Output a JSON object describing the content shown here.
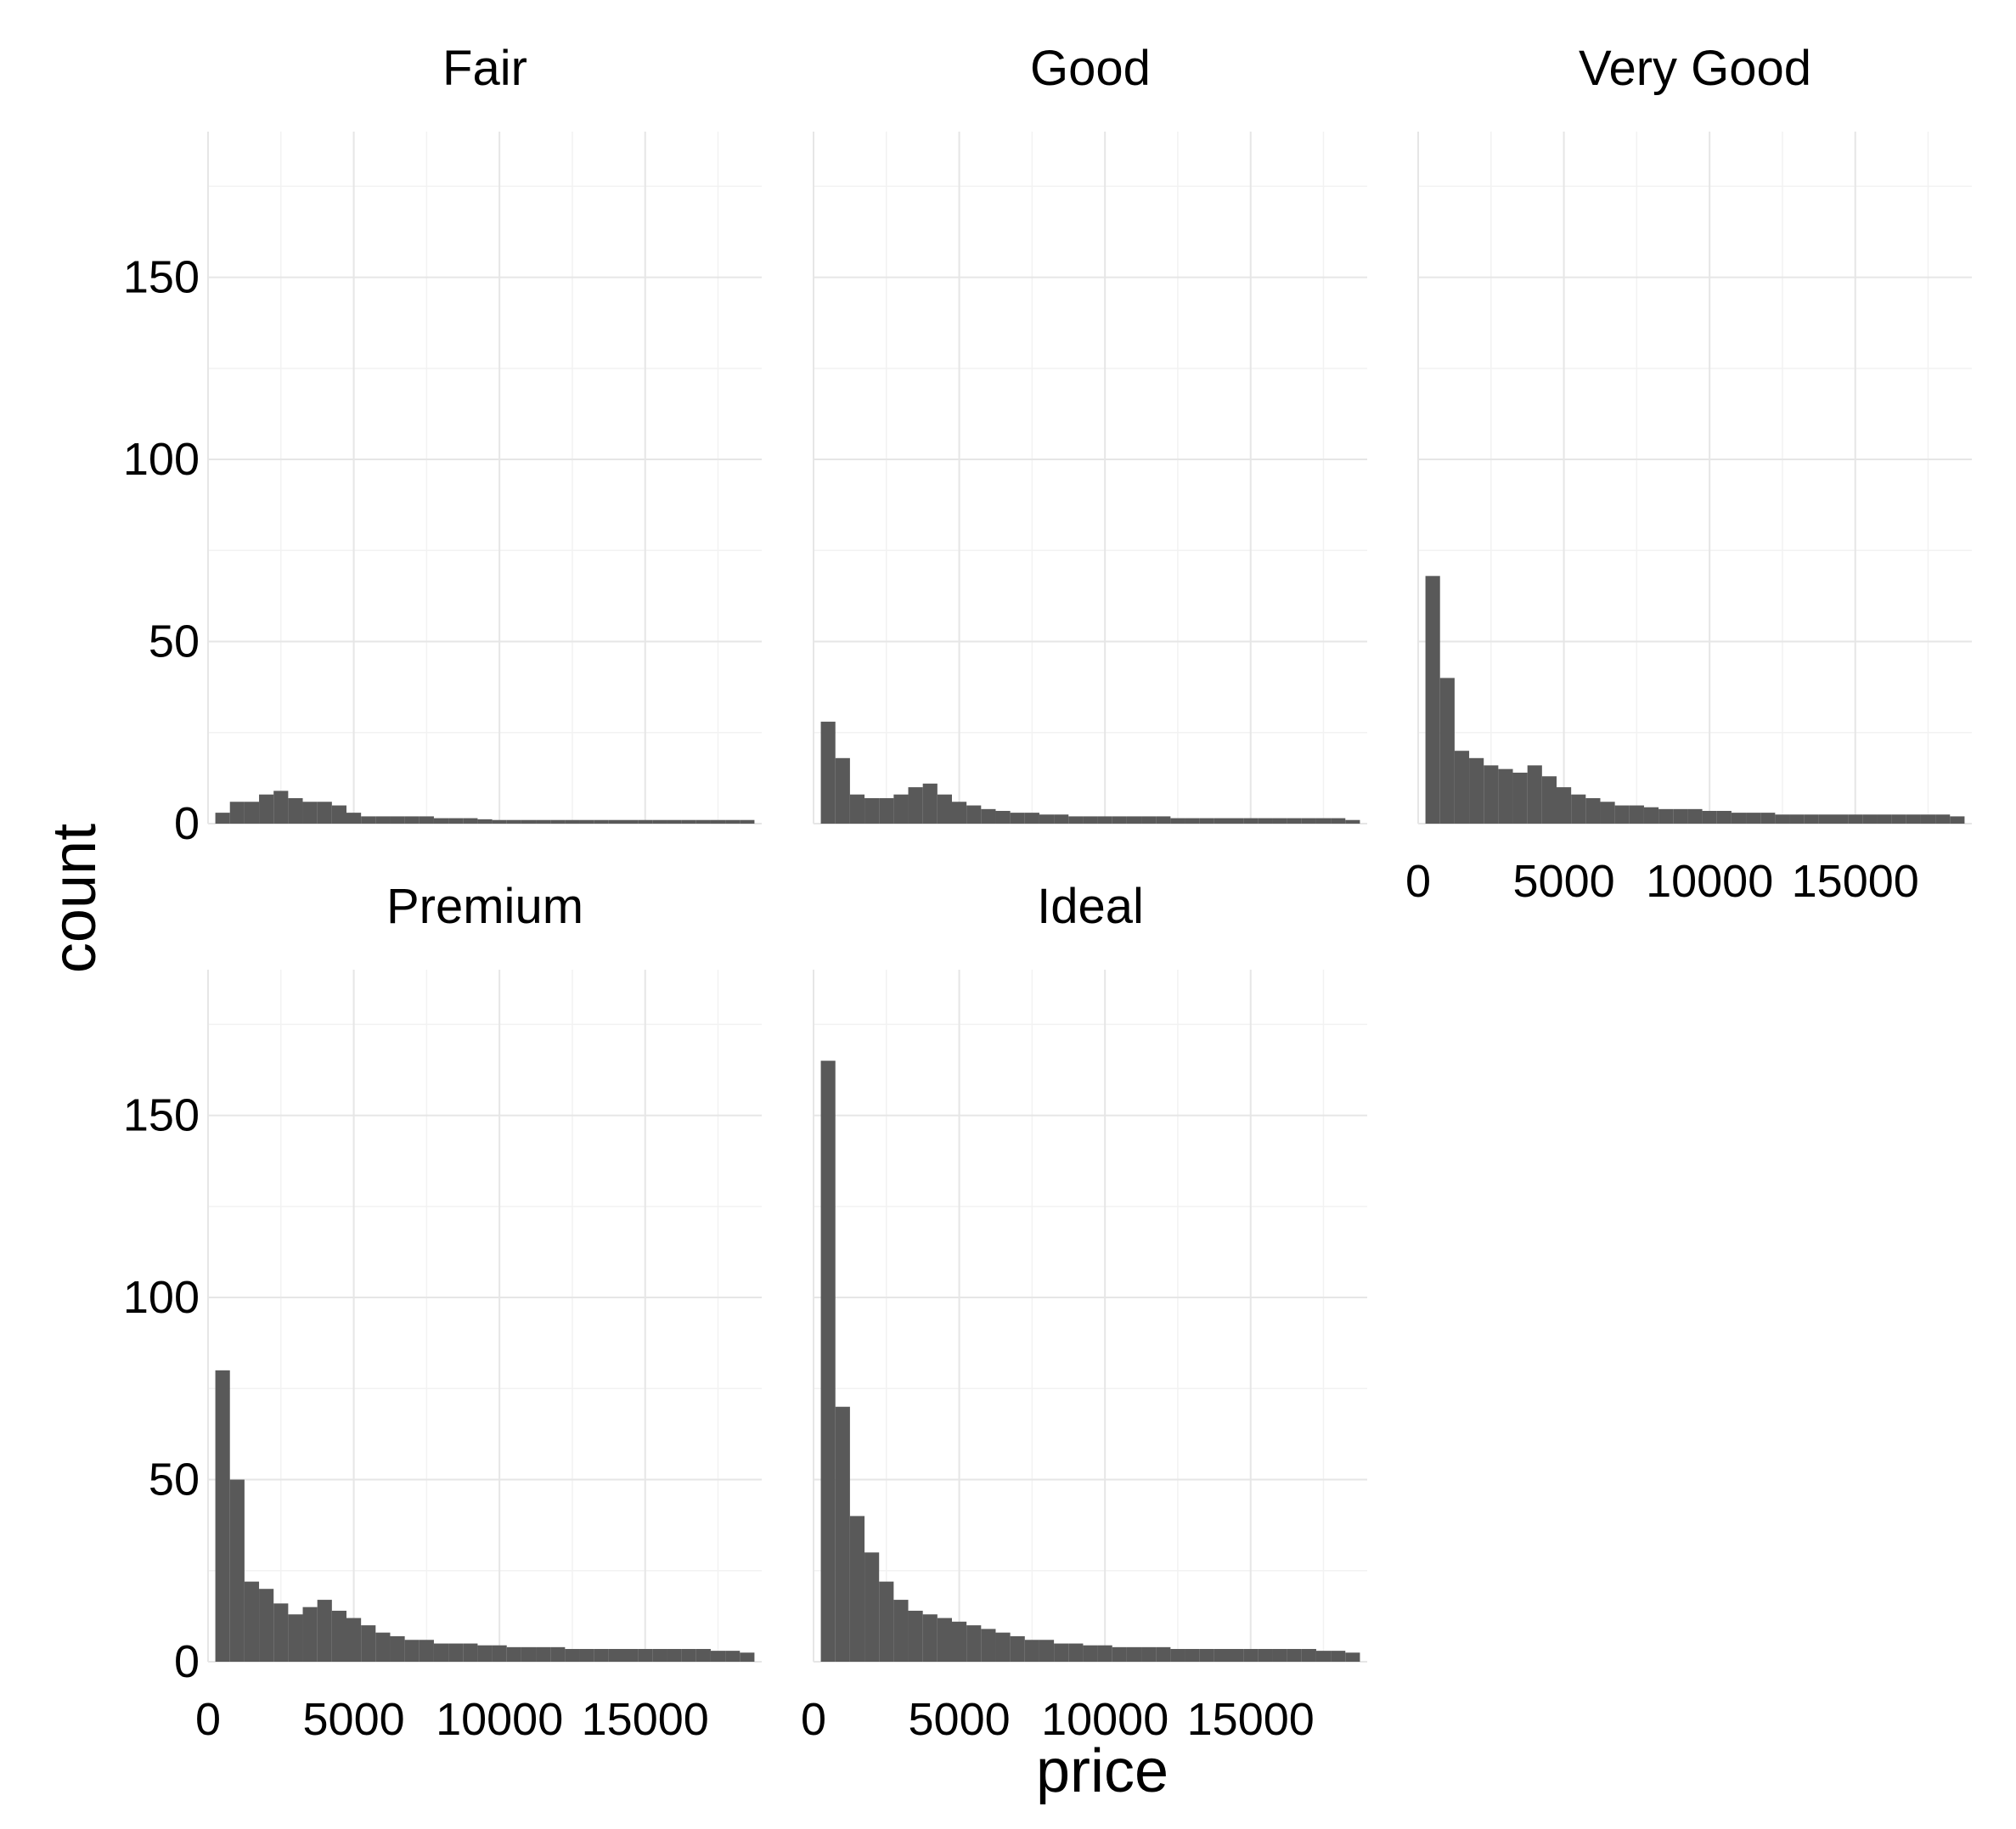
{
  "chart_data": {
    "type": "bar",
    "subtype": "histogram-facets",
    "xlabel": "price",
    "ylabel": "count",
    "xlim": [
      0,
      19000
    ],
    "ylim": [
      0,
      190
    ],
    "x_ticks": [
      0,
      5000,
      10000,
      15000
    ],
    "x_tick_labels": [
      "0",
      "5000",
      "10000",
      "15000"
    ],
    "y_ticks": [
      0,
      50,
      100,
      150
    ],
    "y_tick_labels": [
      "0",
      "50",
      "100",
      "150"
    ],
    "x_minor_ticks": [
      2500,
      7500,
      12500,
      17500
    ],
    "y_minor_ticks": [
      25,
      75,
      125,
      175
    ],
    "grid": true,
    "bar_color": "#595959",
    "bin_width": 500,
    "facets": [
      {
        "name": "Fair",
        "x": [
          500,
          1000,
          1500,
          2000,
          2500,
          3000,
          3500,
          4000,
          4500,
          5000,
          5500,
          6000,
          6500,
          7000,
          7500,
          8000,
          8500,
          9000,
          9500,
          10000,
          10500,
          11000,
          11500,
          12000,
          12500,
          13000,
          13500,
          14000,
          14500,
          15000,
          15500,
          16000,
          16500,
          17000,
          17500,
          18000,
          18500
        ],
        "values": [
          3,
          6,
          6,
          8,
          9,
          7,
          6,
          6,
          5,
          3,
          2,
          2,
          2,
          2,
          2,
          1.5,
          1.5,
          1.5,
          1.2,
          1,
          1,
          1,
          1,
          1,
          1,
          1,
          1,
          1,
          1,
          1,
          1,
          1,
          1,
          1,
          1,
          1,
          1
        ]
      },
      {
        "name": "Good",
        "x": [
          500,
          1000,
          1500,
          2000,
          2500,
          3000,
          3500,
          4000,
          4500,
          5000,
          5500,
          6000,
          6500,
          7000,
          7500,
          8000,
          8500,
          9000,
          9500,
          10000,
          10500,
          11000,
          11500,
          12000,
          12500,
          13000,
          13500,
          14000,
          14500,
          15000,
          15500,
          16000,
          16500,
          17000,
          17500,
          18000,
          18500
        ],
        "values": [
          28,
          18,
          8,
          7,
          7,
          8,
          10,
          11,
          8,
          6,
          5,
          4,
          3.5,
          3,
          3,
          2.5,
          2.5,
          2,
          2,
          2,
          2,
          2,
          2,
          2,
          1.5,
          1.5,
          1.5,
          1.5,
          1.5,
          1.5,
          1.5,
          1.5,
          1.5,
          1.5,
          1.5,
          1.5,
          1
        ]
      },
      {
        "name": "Very Good",
        "x": [
          500,
          1000,
          1500,
          2000,
          2500,
          3000,
          3500,
          4000,
          4500,
          5000,
          5500,
          6000,
          6500,
          7000,
          7500,
          8000,
          8500,
          9000,
          9500,
          10000,
          10500,
          11000,
          11500,
          12000,
          12500,
          13000,
          13500,
          14000,
          14500,
          15000,
          15500,
          16000,
          16500,
          17000,
          17500,
          18000,
          18500
        ],
        "values": [
          68,
          40,
          20,
          18,
          16,
          15,
          14,
          16,
          13,
          10,
          8,
          7,
          6,
          5,
          5,
          4.5,
          4,
          4,
          4,
          3.5,
          3.5,
          3,
          3,
          3,
          2.5,
          2.5,
          2.5,
          2.5,
          2.5,
          2.5,
          2.5,
          2.5,
          2.5,
          2.5,
          2.5,
          2.5,
          2
        ]
      },
      {
        "name": "Premium",
        "x": [
          500,
          1000,
          1500,
          2000,
          2500,
          3000,
          3500,
          4000,
          4500,
          5000,
          5500,
          6000,
          6500,
          7000,
          7500,
          8000,
          8500,
          9000,
          9500,
          10000,
          10500,
          11000,
          11500,
          12000,
          12500,
          13000,
          13500,
          14000,
          14500,
          15000,
          15500,
          16000,
          16500,
          17000,
          17500,
          18000,
          18500
        ],
        "values": [
          80,
          50,
          22,
          20,
          16,
          13,
          15,
          17,
          14,
          12,
          10,
          8,
          7,
          6,
          6,
          5,
          5,
          5,
          4.5,
          4.5,
          4,
          4,
          4,
          4,
          3.5,
          3.5,
          3.5,
          3.5,
          3.5,
          3.5,
          3.5,
          3.5,
          3.5,
          3.5,
          3,
          3,
          2.5
        ]
      },
      {
        "name": "Ideal",
        "x": [
          500,
          1000,
          1500,
          2000,
          2500,
          3000,
          3500,
          4000,
          4500,
          5000,
          5500,
          6000,
          6500,
          7000,
          7500,
          8000,
          8500,
          9000,
          9500,
          10000,
          10500,
          11000,
          11500,
          12000,
          12500,
          13000,
          13500,
          14000,
          14500,
          15000,
          15500,
          16000,
          16500,
          17000,
          17500,
          18000,
          18500
        ],
        "values": [
          165,
          70,
          40,
          30,
          22,
          17,
          14,
          13,
          12,
          11,
          10,
          9,
          8,
          7,
          6,
          6,
          5,
          5,
          4.5,
          4.5,
          4,
          4,
          4,
          4,
          3.5,
          3.5,
          3.5,
          3.5,
          3.5,
          3.5,
          3.5,
          3.5,
          3.5,
          3.5,
          3,
          3,
          2.5
        ]
      }
    ]
  }
}
